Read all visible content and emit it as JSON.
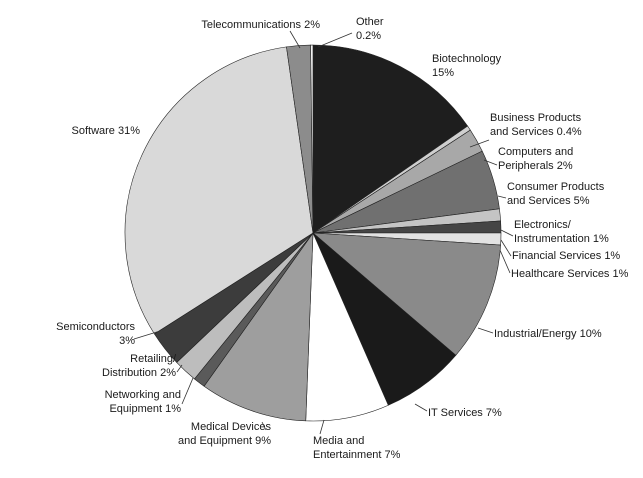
{
  "chart_data": {
    "type": "pie",
    "start_angle_deg": 0,
    "direction": "clockwise",
    "slices": [
      {
        "label": "Biotechnology",
        "value": 15,
        "display": "15%",
        "color": "#1e1e1e"
      },
      {
        "label": "Business Products and Services",
        "value": 0.4,
        "display": "0.4%",
        "color": "#cfcfcf"
      },
      {
        "label": "Computers and Peripherals",
        "value": 2,
        "display": "2%",
        "color": "#a8a8a8"
      },
      {
        "label": "Consumer Products and Services",
        "value": 5,
        "display": "5%",
        "color": "#707070"
      },
      {
        "label": "Electronics/ Instrumentation",
        "value": 1,
        "display": "1%",
        "color": "#c4c4c4"
      },
      {
        "label": "Financial Services",
        "value": 1,
        "display": "1%",
        "color": "#454545"
      },
      {
        "label": "Healthcare Services",
        "value": 1,
        "display": "1%",
        "color": "#e2e2e2"
      },
      {
        "label": "Industrial/Energy",
        "value": 10,
        "display": "10%",
        "color": "#8a8a8a"
      },
      {
        "label": "IT Services",
        "value": 7,
        "display": "7%",
        "color": "#1a1a1a"
      },
      {
        "label": "Media and Entertainment",
        "value": 7,
        "display": "7%",
        "color": "#ffffff"
      },
      {
        "label": "Medical Devices and Equipment",
        "value": 9,
        "display": "9%",
        "color": "#9e9e9e"
      },
      {
        "label": "Networking and Equipment",
        "value": 1,
        "display": "1%",
        "color": "#5a5a5a"
      },
      {
        "label": "Retailing/ Distribution",
        "value": 2,
        "display": "2%",
        "color": "#bdbdbd"
      },
      {
        "label": "Semiconductors",
        "value": 3,
        "display": "3%",
        "color": "#3c3c3c"
      },
      {
        "label": "Software",
        "value": 31,
        "display": "31%",
        "color": "#d9d9d9"
      },
      {
        "label": "Telecommunications",
        "value": 2,
        "display": "2%",
        "color": "#8c8c8c"
      },
      {
        "label": "Other",
        "value": 0.2,
        "display": "0.2%",
        "color": "#f2f2f2"
      }
    ],
    "labels": [
      {
        "lines": [
          "Biotechnology",
          "15%"
        ]
      },
      {
        "lines": [
          "Business Products",
          "and Services 0.4%"
        ]
      },
      {
        "lines": [
          "Computers and",
          "Peripherals 2%"
        ]
      },
      {
        "lines": [
          "Consumer Products",
          "and Services 5%"
        ]
      },
      {
        "lines": [
          "Electronics/",
          "Instrumentation 1%"
        ]
      },
      {
        "lines": [
          "Financial Services 1%"
        ]
      },
      {
        "lines": [
          "Healthcare Services 1%"
        ]
      },
      {
        "lines": [
          "Industrial/Energy 10%"
        ]
      },
      {
        "lines": [
          "IT Services 7%"
        ]
      },
      {
        "lines": [
          "Media and",
          "Entertainment 7%"
        ]
      },
      {
        "lines": [
          "Medical Devices",
          "and Equipment 9%"
        ]
      },
      {
        "lines": [
          "Networking and",
          "Equipment 1%"
        ]
      },
      {
        "lines": [
          "Retailing/",
          "Distribution 2%"
        ]
      },
      {
        "lines": [
          "Semiconductors",
          "3%"
        ]
      },
      {
        "lines": [
          "Software 31%"
        ]
      },
      {
        "lines": [
          "Telecommunications 2%"
        ]
      },
      {
        "lines": [
          "Other",
          "0.2%"
        ]
      }
    ],
    "legend": "none"
  }
}
